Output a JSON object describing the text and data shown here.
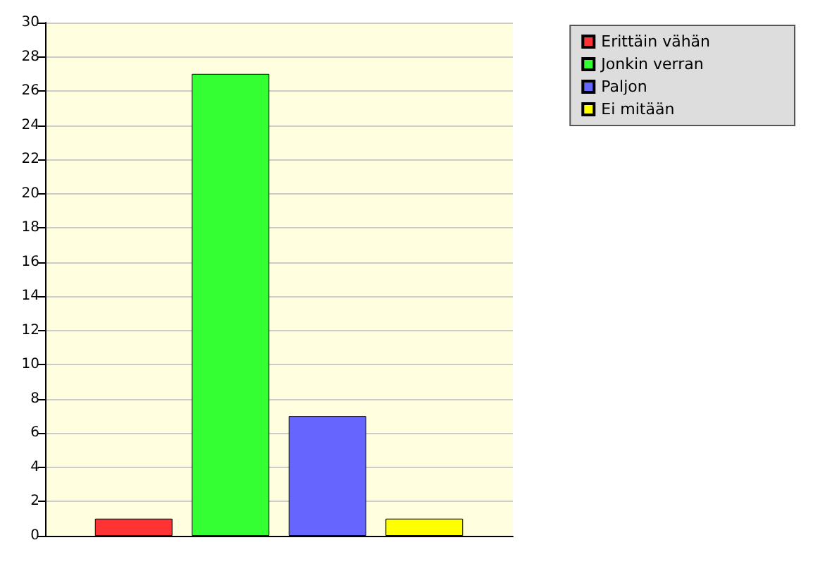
{
  "chart_data": {
    "type": "bar",
    "categories": [
      null
    ],
    "series": [
      {
        "name": "Erittäin vähän",
        "color": "#ff3333",
        "values": [
          1
        ]
      },
      {
        "name": "Jonkin verran",
        "color": "#33ff33",
        "values": [
          27
        ]
      },
      {
        "name": "Paljon",
        "color": "#6666ff",
        "values": [
          7
        ]
      },
      {
        "name": "Ei mitään",
        "color": "#ffff00",
        "values": [
          1
        ]
      }
    ],
    "ylim": [
      0,
      30
    ],
    "yticks": [
      0,
      2,
      4,
      6,
      8,
      10,
      12,
      14,
      16,
      18,
      20,
      22,
      24,
      26,
      28,
      30
    ],
    "grid": "y",
    "legend": "top right"
  }
}
